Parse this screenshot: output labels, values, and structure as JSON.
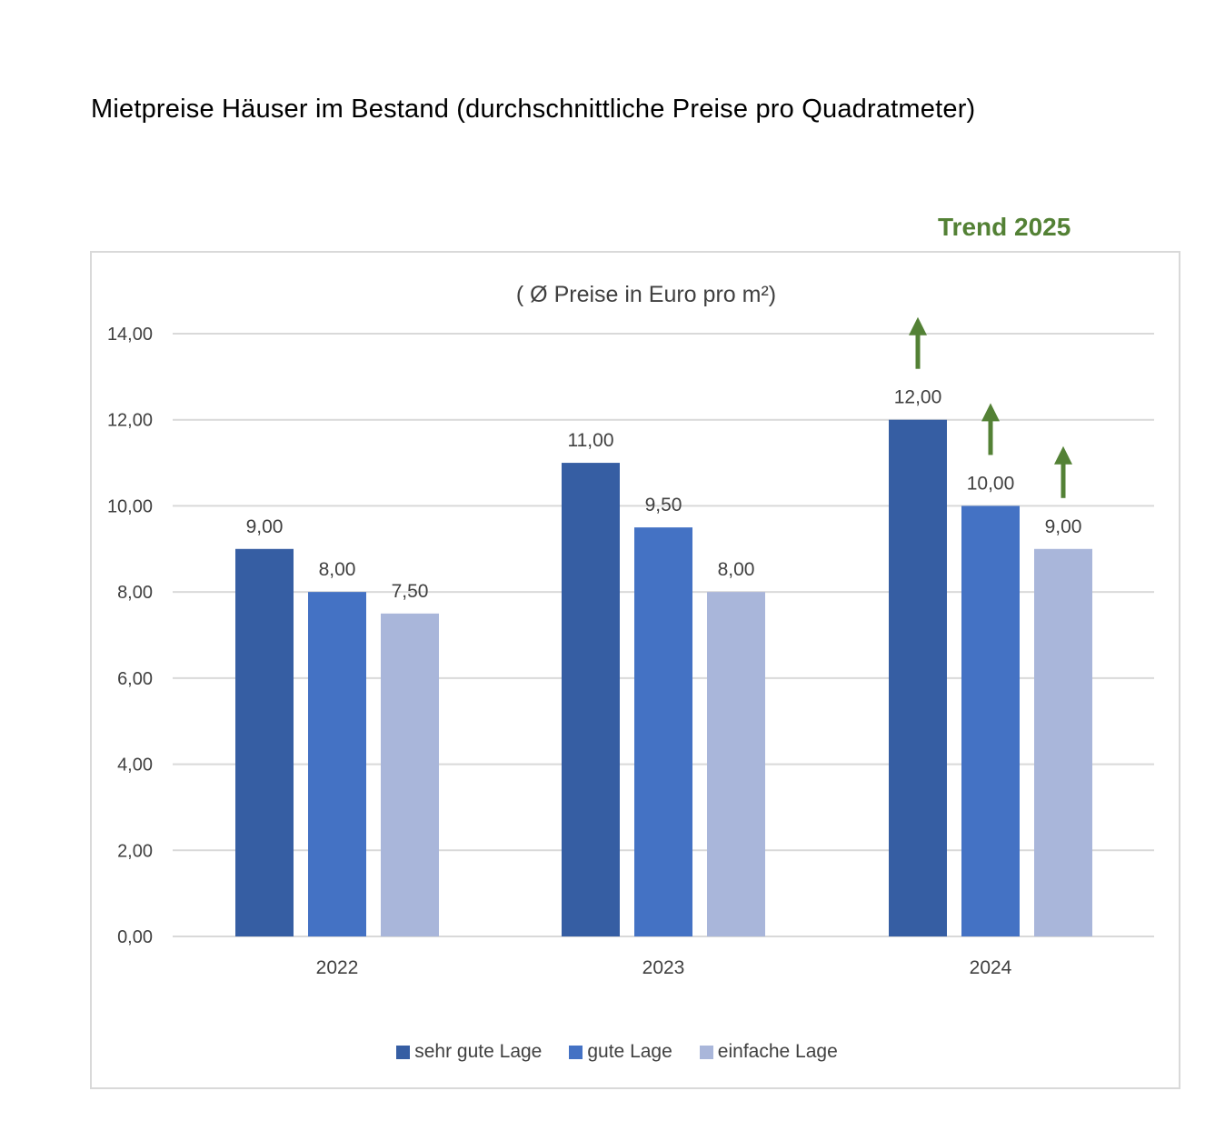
{
  "page": {
    "title": "Mietpreise Häuser im Bestand (durchschnittliche Preise pro Quadratmeter)",
    "trend_label": "Trend 2025",
    "trend_color": "#538135"
  },
  "chart_data": {
    "type": "bar",
    "title": "( Ø Preise in Euro pro m²)",
    "xlabel": "",
    "ylabel": "",
    "categories": [
      "2022",
      "2023",
      "2024"
    ],
    "series": [
      {
        "name": "sehr gute Lage",
        "color": "#365ea3",
        "values": [
          9.0,
          11.0,
          12.0
        ]
      },
      {
        "name": "gute Lage",
        "color": "#4472c4",
        "values": [
          8.0,
          9.5,
          10.0
        ]
      },
      {
        "name": "einfache Lage",
        "color": "#a9b6da",
        "values": [
          7.5,
          8.0,
          9.0
        ]
      }
    ],
    "data_labels": [
      [
        "9,00",
        "11,00",
        "12,00"
      ],
      [
        "8,00",
        "9,50",
        "10,00"
      ],
      [
        "7,50",
        "8,00",
        "9,00"
      ]
    ],
    "ylim": [
      0,
      14
    ],
    "yticks": [
      "0,00",
      "2,00",
      "4,00",
      "6,00",
      "8,00",
      "10,00",
      "12,00",
      "14,00"
    ],
    "grid": true,
    "legend_position": "bottom",
    "annotations": {
      "trend_arrows": {
        "direction": "up",
        "category": "2024",
        "series": [
          "sehr gute Lage",
          "gute Lage",
          "einfache Lage"
        ]
      }
    }
  }
}
